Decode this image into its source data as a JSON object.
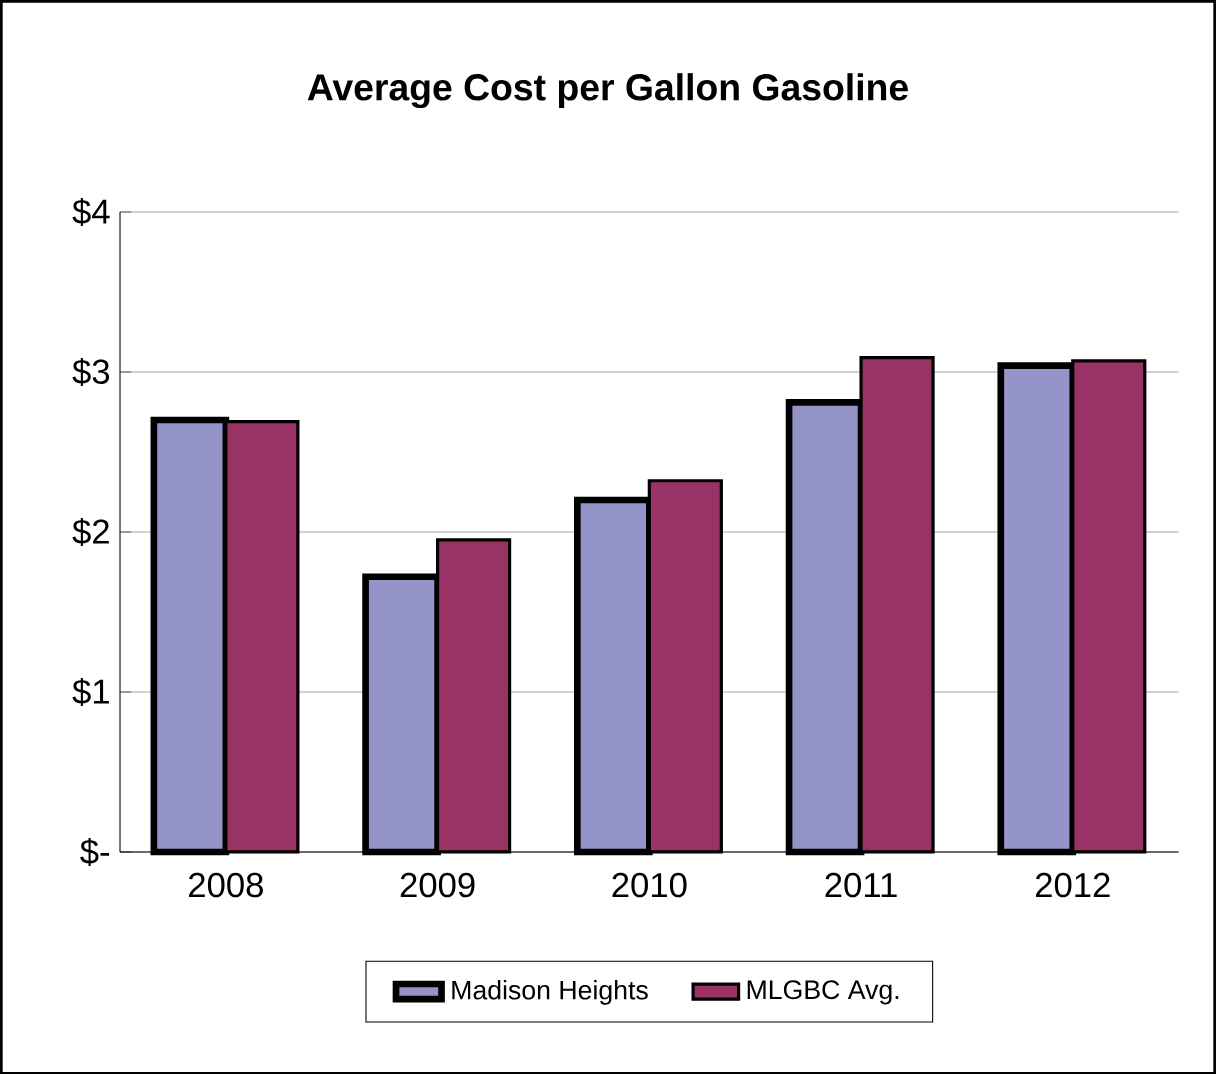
{
  "chart_data": {
    "type": "bar",
    "title": "Average Cost per Gallon Gasoline",
    "categories": [
      "2008",
      "2009",
      "2010",
      "2011",
      "2012"
    ],
    "series": [
      {
        "name": "Madison Heights",
        "color": "#9494c8",
        "values": [
          2.7,
          1.72,
          2.2,
          2.81,
          3.04
        ]
      },
      {
        "name": "MLGBC Avg.",
        "color": "#993366",
        "values": [
          2.69,
          1.95,
          2.32,
          3.09,
          3.07
        ]
      }
    ],
    "ylim": [
      0,
      4
    ],
    "yticks": [
      {
        "value": 0,
        "label": "$-"
      },
      {
        "value": 1,
        "label": "$1"
      },
      {
        "value": 2,
        "label": "$2"
      },
      {
        "value": 3,
        "label": "$3"
      },
      {
        "value": 4,
        "label": "$4"
      }
    ],
    "grid": "y",
    "legend": "bottom"
  }
}
